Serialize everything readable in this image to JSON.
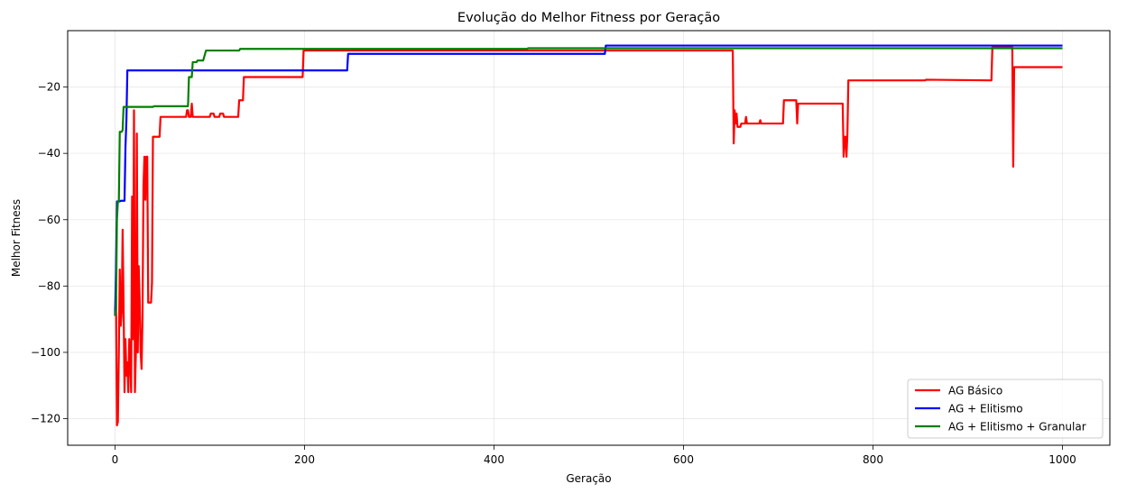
{
  "chart_data": {
    "type": "line",
    "title": "Evolução do Melhor Fitness por Geração",
    "xlabel": "Geração",
    "ylabel": "Melhor Fitness",
    "xlim": [
      -50,
      1050
    ],
    "ylim": [
      -128,
      -3
    ],
    "xticks": [
      0,
      200,
      400,
      600,
      800,
      1000
    ],
    "yticks": [
      -120,
      -100,
      -80,
      -60,
      -40,
      -20
    ],
    "xtick_labels": [
      "0",
      "200",
      "400",
      "600",
      "800",
      "1000"
    ],
    "ytick_labels": [
      "−120",
      "−100",
      "−80",
      "−60",
      "−40",
      "−20"
    ],
    "grid": true,
    "legend_position": "lower-right",
    "series": [
      {
        "name": "AG Básico",
        "color": "#ff0000",
        "points": [
          [
            0,
            -89
          ],
          [
            1,
            -83
          ],
          [
            2,
            -122
          ],
          [
            3,
            -121
          ],
          [
            4,
            -100
          ],
          [
            5,
            -75
          ],
          [
            6,
            -92
          ],
          [
            7,
            -88
          ],
          [
            8,
            -63
          ],
          [
            9,
            -85
          ],
          [
            10,
            -112
          ],
          [
            11,
            -96
          ],
          [
            12,
            -107
          ],
          [
            13,
            -103
          ],
          [
            14,
            -112
          ],
          [
            15,
            -96
          ],
          [
            16,
            -102
          ],
          [
            17,
            -112
          ],
          [
            18,
            -53
          ],
          [
            19,
            -96
          ],
          [
            20,
            -27
          ],
          [
            21,
            -112
          ],
          [
            22,
            -100
          ],
          [
            23,
            -34
          ],
          [
            24,
            -100
          ],
          [
            25,
            -74
          ],
          [
            26,
            -84
          ],
          [
            27,
            -100
          ],
          [
            28,
            -105
          ],
          [
            29,
            -89
          ],
          [
            30,
            -50
          ],
          [
            31,
            -41
          ],
          [
            32,
            -54
          ],
          [
            33,
            -41
          ],
          [
            34,
            -41
          ],
          [
            35,
            -85
          ],
          [
            36,
            -85
          ],
          [
            37,
            -85
          ],
          [
            38,
            -85
          ],
          [
            39,
            -79
          ],
          [
            40,
            -35
          ],
          [
            41,
            -35
          ],
          [
            44,
            -35
          ],
          [
            47,
            -35
          ],
          [
            48,
            -29
          ],
          [
            75,
            -29
          ],
          [
            76,
            -27
          ],
          [
            77,
            -27
          ],
          [
            78,
            -29
          ],
          [
            80,
            -29
          ],
          [
            81,
            -25
          ],
          [
            82,
            -29
          ],
          [
            84,
            -29
          ],
          [
            100,
            -29
          ],
          [
            101,
            -28
          ],
          [
            104,
            -28
          ],
          [
            105,
            -29
          ],
          [
            110,
            -29
          ],
          [
            111,
            -28
          ],
          [
            114,
            -28
          ],
          [
            115,
            -29
          ],
          [
            130,
            -29
          ],
          [
            131,
            -24
          ],
          [
            135,
            -24
          ],
          [
            136,
            -17
          ],
          [
            198,
            -17
          ],
          [
            199,
            -9
          ],
          [
            652,
            -9
          ],
          [
            653,
            -37
          ],
          [
            654,
            -27
          ],
          [
            655,
            -31
          ],
          [
            656,
            -28
          ],
          [
            657,
            -32
          ],
          [
            660,
            -32
          ],
          [
            661,
            -31
          ],
          [
            665,
            -31
          ],
          [
            666,
            -29
          ],
          [
            667,
            -31
          ],
          [
            680,
            -31
          ],
          [
            681,
            -30
          ],
          [
            682,
            -31
          ],
          [
            705,
            -31
          ],
          [
            706,
            -24
          ],
          [
            719,
            -24
          ],
          [
            720,
            -31
          ],
          [
            721,
            -25
          ],
          [
            768,
            -25
          ],
          [
            769,
            -41
          ],
          [
            770,
            -35
          ],
          [
            771,
            -35
          ],
          [
            772,
            -41
          ],
          [
            773,
            -34
          ],
          [
            774,
            -18
          ],
          [
            855,
            -18
          ],
          [
            856,
            -17.8
          ],
          [
            925,
            -18
          ],
          [
            926,
            -8
          ],
          [
            947,
            -8
          ],
          [
            948,
            -44
          ],
          [
            949,
            -14
          ],
          [
            1000,
            -14
          ]
        ]
      },
      {
        "name": "AG + Elitismo",
        "color": "#0000ff",
        "points": [
          [
            0,
            -89
          ],
          [
            1,
            -75
          ],
          [
            2,
            -54.5
          ],
          [
            5,
            -54.5
          ],
          [
            6,
            -54.3
          ],
          [
            10,
            -54.3
          ],
          [
            11,
            -38
          ],
          [
            12,
            -30
          ],
          [
            13,
            -15
          ],
          [
            245,
            -15
          ],
          [
            246,
            -10
          ],
          [
            517,
            -10
          ],
          [
            518,
            -7.5
          ],
          [
            1000,
            -7.5
          ]
        ]
      },
      {
        "name": "AG + Elitismo + Granular",
        "color": "#008000",
        "points": [
          [
            0,
            -89
          ],
          [
            1,
            -87
          ],
          [
            2,
            -60
          ],
          [
            3,
            -54.5
          ],
          [
            4,
            -54.5
          ],
          [
            5,
            -33.5
          ],
          [
            7,
            -33.5
          ],
          [
            8,
            -33
          ],
          [
            9,
            -26
          ],
          [
            40,
            -26
          ],
          [
            41,
            -25.8
          ],
          [
            77,
            -25.8
          ],
          [
            78,
            -17
          ],
          [
            81,
            -17
          ],
          [
            82,
            -12.5
          ],
          [
            86,
            -12.5
          ],
          [
            87,
            -12
          ],
          [
            93,
            -12
          ],
          [
            94,
            -11
          ],
          [
            95,
            -10
          ],
          [
            96,
            -9
          ],
          [
            131,
            -9
          ],
          [
            132,
            -8.5
          ],
          [
            435,
            -8.5
          ],
          [
            436,
            -8.3
          ],
          [
            1000,
            -8.3
          ]
        ]
      }
    ]
  }
}
